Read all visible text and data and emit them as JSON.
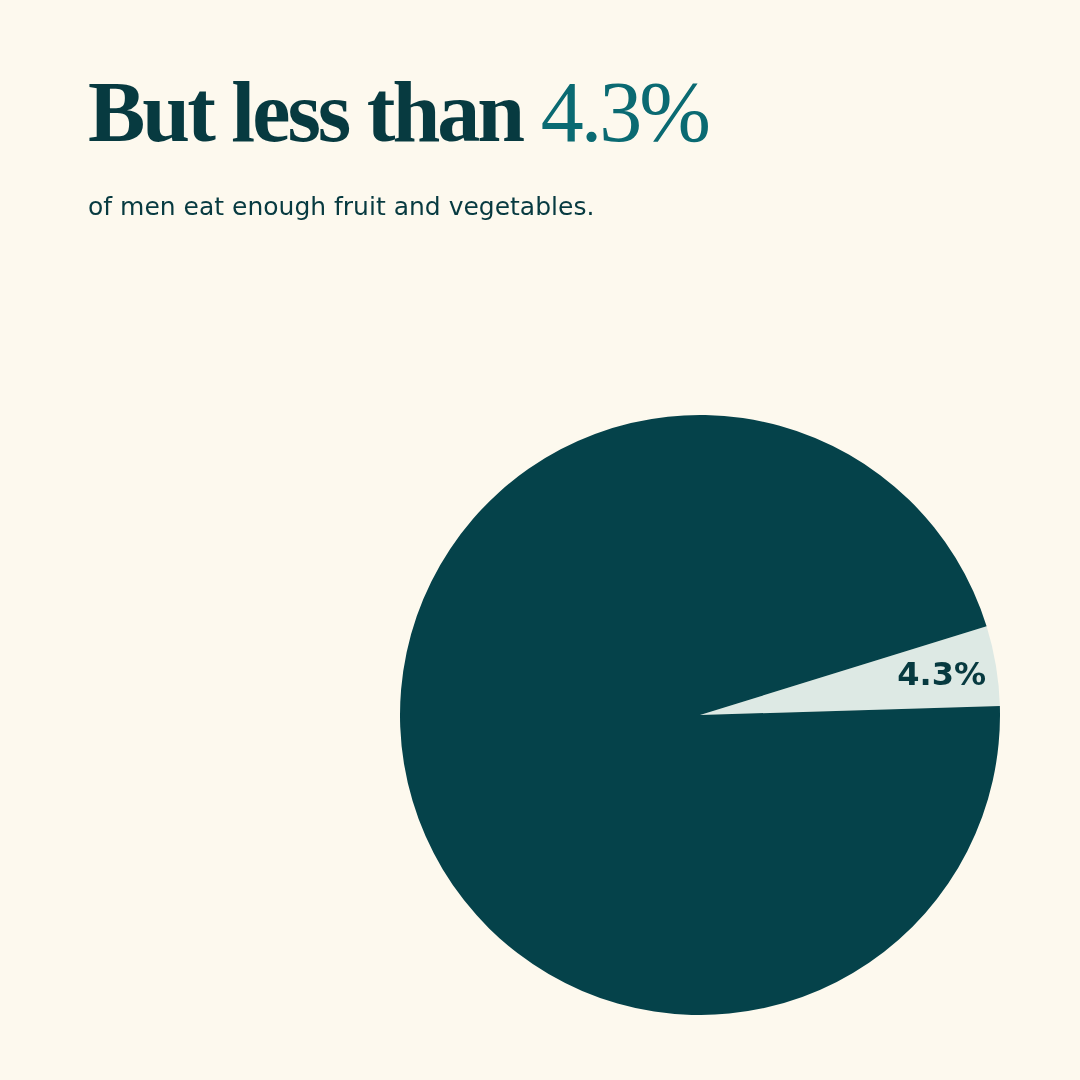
{
  "chart_data": {
    "type": "pie",
    "title": "But less than 4.3%",
    "subtitle": "of men eat enough fruit and vegetables.",
    "categories": [
      null,
      null
    ],
    "values": [
      4.3,
      95.7
    ],
    "colors": [
      "#dde9e4",
      "#05424a"
    ],
    "value_labels": [
      "4.3%",
      null
    ]
  }
}
